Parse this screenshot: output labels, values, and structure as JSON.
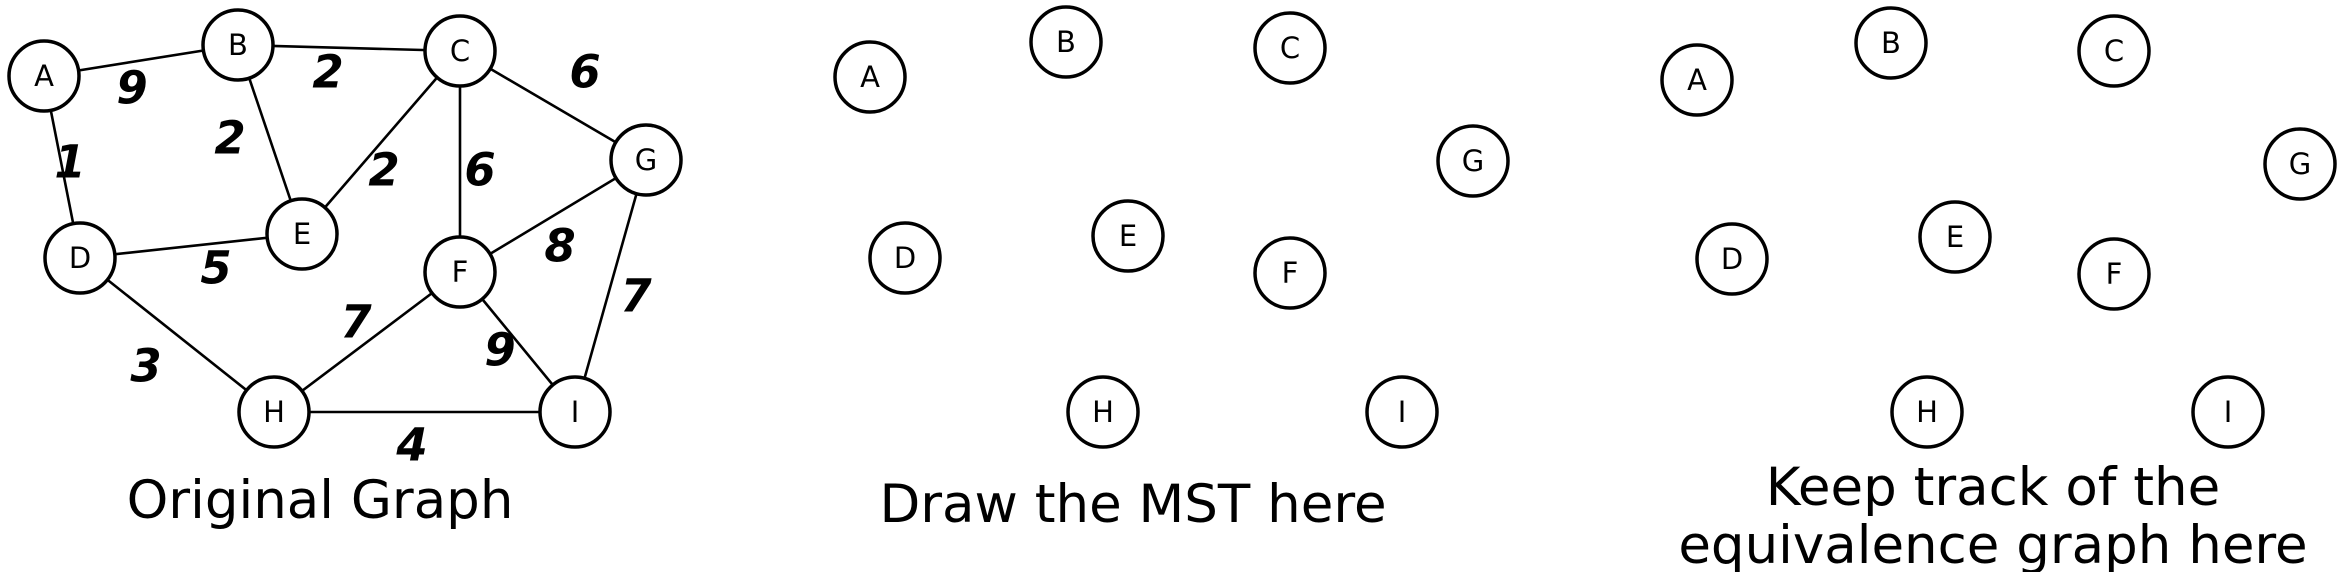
{
  "panels": [
    {
      "id": "original",
      "caption": [
        "Original Graph"
      ],
      "nodes": [
        "A",
        "B",
        "C",
        "D",
        "E",
        "F",
        "G",
        "H",
        "I"
      ],
      "edges": [
        {
          "from": "A",
          "to": "B",
          "weight": "9"
        },
        {
          "from": "B",
          "to": "C",
          "weight": "2"
        },
        {
          "from": "A",
          "to": "D",
          "weight": "1"
        },
        {
          "from": "B",
          "to": "E",
          "weight": "2"
        },
        {
          "from": "C",
          "to": "E",
          "weight": "2"
        },
        {
          "from": "C",
          "to": "F",
          "weight": "6"
        },
        {
          "from": "C",
          "to": "G",
          "weight": "6"
        },
        {
          "from": "D",
          "to": "E",
          "weight": "5"
        },
        {
          "from": "F",
          "to": "G",
          "weight": "8"
        },
        {
          "from": "D",
          "to": "H",
          "weight": "3"
        },
        {
          "from": "F",
          "to": "H",
          "weight": "7"
        },
        {
          "from": "F",
          "to": "I",
          "weight": "9"
        },
        {
          "from": "G",
          "to": "I",
          "weight": "7"
        },
        {
          "from": "H",
          "to": "I",
          "weight": "4"
        }
      ]
    },
    {
      "id": "mst",
      "caption": [
        "Draw the MST here"
      ],
      "nodes": [
        "A",
        "B",
        "C",
        "D",
        "E",
        "F",
        "G",
        "H",
        "I"
      ],
      "edges": []
    },
    {
      "id": "equivalence",
      "caption": [
        "Keep track of the",
        "equivalence graph here"
      ],
      "nodes": [
        "A",
        "B",
        "C",
        "D",
        "E",
        "F",
        "G",
        "H",
        "I"
      ],
      "edges": []
    }
  ]
}
